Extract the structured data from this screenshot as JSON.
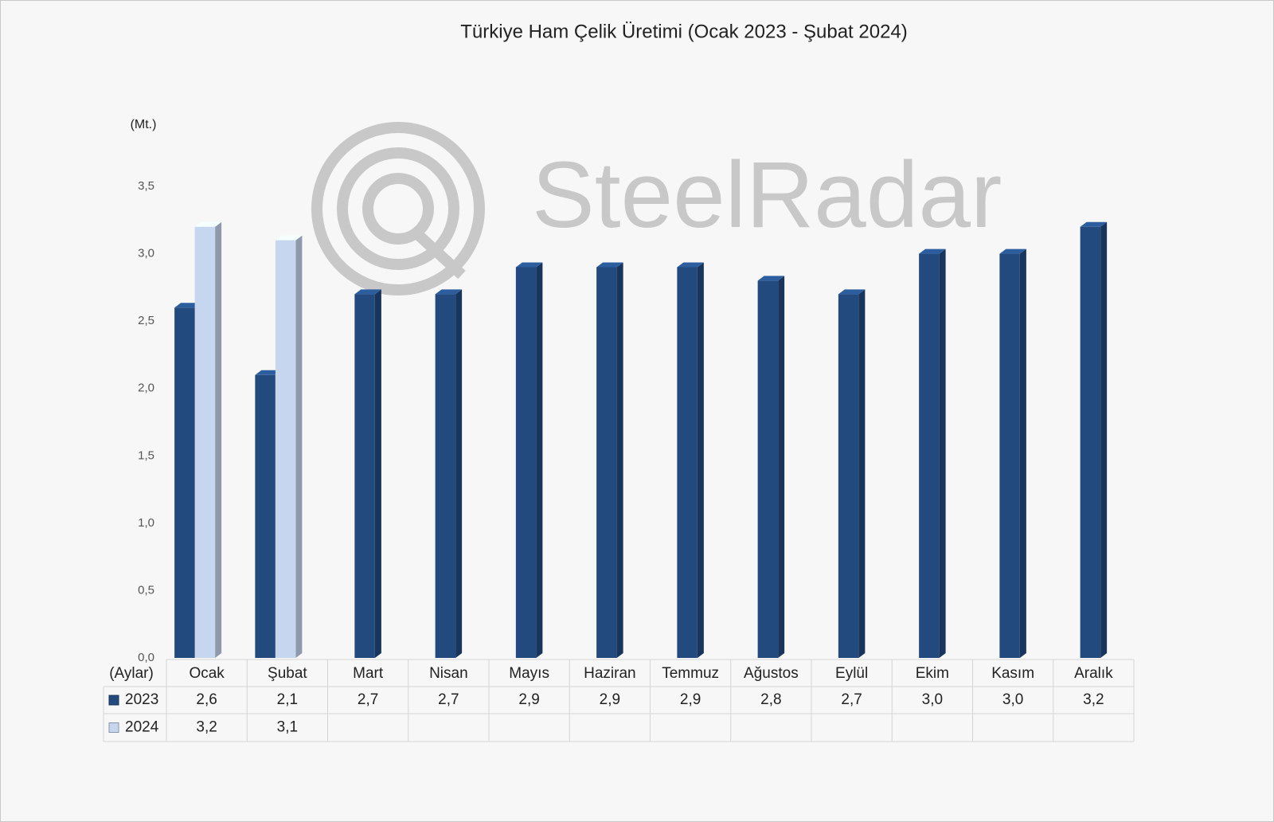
{
  "chart_data": {
    "type": "bar3d",
    "title": "Türkiye Ham Çelik Üretimi (Ocak 2023 - Şubat 2024)",
    "y_unit": "(Mt.)",
    "x_label": "(Aylar)",
    "watermark": "SteelRadar",
    "categories": [
      "Ocak",
      "Şubat",
      "Mart",
      "Nisan",
      "Mayıs",
      "Haziran",
      "Temmuz",
      "Ağustos",
      "Eylül",
      "Ekim",
      "Kasım",
      "Aralık"
    ],
    "series": [
      {
        "name": "2023",
        "color": "#234a7e",
        "values": [
          2.6,
          2.1,
          2.7,
          2.7,
          2.9,
          2.9,
          2.9,
          2.8,
          2.7,
          3.0,
          3.0,
          3.2
        ],
        "value_labels": [
          "2,6",
          "2,1",
          "2,7",
          "2,7",
          "2,9",
          "2,9",
          "2,9",
          "2,8",
          "2,7",
          "3,0",
          "3,0",
          "3,2"
        ]
      },
      {
        "name": "2024",
        "color": "#c5d6ee",
        "values": [
          3.2,
          3.1,
          null,
          null,
          null,
          null,
          null,
          null,
          null,
          null,
          null,
          null
        ],
        "value_labels": [
          "3,2",
          "3,1",
          null,
          null,
          null,
          null,
          null,
          null,
          null,
          null,
          null,
          null
        ]
      }
    ],
    "ylim": [
      0,
      3.5
    ],
    "yticks": [
      {
        "value": 0,
        "label": "0,0"
      },
      {
        "value": 0.5,
        "label": "0,5"
      },
      {
        "value": 1,
        "label": "1,0"
      },
      {
        "value": 1.5,
        "label": "1,5"
      },
      {
        "value": 2,
        "label": "2,0"
      },
      {
        "value": 2.5,
        "label": "2,5"
      },
      {
        "value": 3,
        "label": "3,0"
      },
      {
        "value": 3.5,
        "label": "3,5"
      }
    ],
    "grid": false
  }
}
